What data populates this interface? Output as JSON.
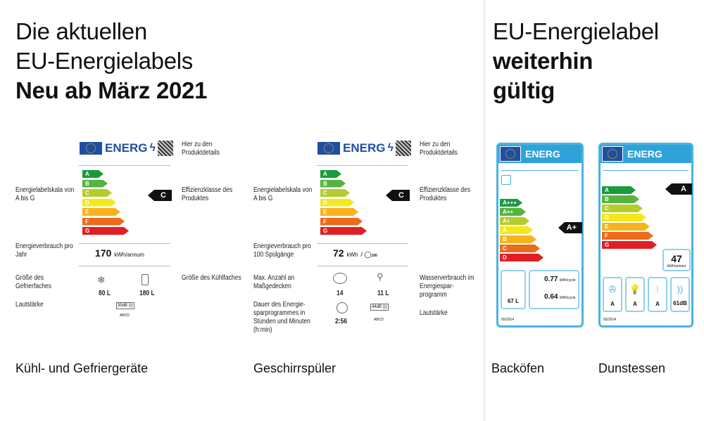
{
  "left_title": {
    "line1": "Die aktuellen",
    "line2": "EU-Energielabels",
    "line3": "Neu ab März 2021"
  },
  "right_title": {
    "line1": "EU-Energielabel",
    "line2": "weiterhin",
    "line3": "gültig"
  },
  "scale_new": [
    "A",
    "B",
    "C",
    "D",
    "E",
    "F",
    "G"
  ],
  "scale_old_oven": [
    "A+++",
    "A++",
    "A+",
    "A",
    "B",
    "C",
    "D"
  ],
  "scale_old_hood": [
    "A",
    "B",
    "C",
    "D",
    "E",
    "F",
    "G"
  ],
  "colors": {
    "A": "#1a9a3c",
    "B": "#55b33e",
    "C": "#b4cc2c",
    "D": "#f4e71c",
    "E": "#f6b31e",
    "F": "#ec6b1c",
    "G": "#e01e24",
    "frame": "#4ab3df"
  },
  "energ": "ENERG",
  "fridge": {
    "caption": "Kühl- und Gefriergeräte",
    "qr_label": "Hier zu den Produktdetails",
    "scale_label": "Energielabelskala von A bis G",
    "class_label": "Effizienzklasse des Produktes",
    "class": "C",
    "consumption_label": "Energieverbrauch pro Jahr",
    "consumption_value": "170",
    "consumption_unit": "kWh/annum",
    "freezer_label": "Größe des Gefrierfaches",
    "freezer_value": "80 L",
    "fridge_label": "Größe des Kühlfaches",
    "fridge_value": "180 L",
    "noise_label": "Lautstärke",
    "noise_value": "35dB",
    "noise_class": "ABCD"
  },
  "dishwasher": {
    "caption": "Geschirrspüler",
    "qr_label": "Hier zu den Produktdetails",
    "scale_label": "Energielabelskala von A bis G",
    "class_label": "Effizienzklasse des Produktes",
    "class": "C",
    "consumption_label": "Energieverbrauch pro 100 Spülgänge",
    "consumption_value": "72",
    "consumption_unit": "kWh",
    "cycles": "100",
    "settings_label": "Max. Anzahl an Maßgedecken",
    "settings_value": "14",
    "water_label": "Wasserverbrauch im Energiespar-programm",
    "water_value": "11 L",
    "duration_label": "Dauer des Energie-sparprogrammes in Stunden und Minuten (h:min)",
    "duration_value": "2:56",
    "noise_label": "Lautstärke",
    "noise_value": "44dB",
    "noise_class": "ABCD"
  },
  "oven": {
    "caption": "Backöfen",
    "class": "A+",
    "volume": "67 L",
    "value1": "0.77",
    "value2": "0.64",
    "unit": "kWh/cycle",
    "footer": "65/2014"
  },
  "hood": {
    "caption": "Dunstessen",
    "class": "A",
    "consumption": "47",
    "unit": "kWh/annum",
    "icons": [
      "A",
      "A",
      "A",
      "61dB"
    ],
    "footer": "65/2014"
  }
}
